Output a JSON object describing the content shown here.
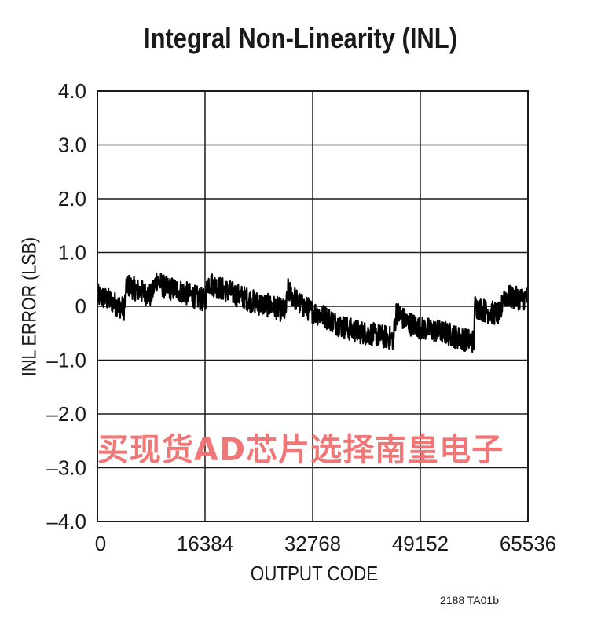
{
  "chart_data": {
    "type": "line",
    "title": "Integral Non-Linearity (INL)",
    "xlabel": "OUTPUT CODE",
    "ylabel": "INL ERROR (LSB)",
    "xlim": [
      0,
      65536
    ],
    "ylim": [
      -4.0,
      4.0
    ],
    "x_ticks": [
      0,
      16384,
      32768,
      49152,
      65536
    ],
    "x_tick_labels": [
      "0",
      "16384",
      "32768",
      "49152",
      "65536"
    ],
    "y_ticks": [
      4.0,
      3.0,
      2.0,
      1.0,
      0,
      -1.0,
      -2.0,
      -3.0,
      -4.0
    ],
    "y_tick_labels": [
      "4.0",
      "3.0",
      "2.0",
      "1.0",
      "0",
      "–1.0",
      "–2.0",
      "–3.0",
      "–4.0"
    ],
    "grid": true,
    "series": [
      {
        "color": "#000000",
        "x": [
          0,
          2048,
          4096,
          4500,
          6144,
          8192,
          9000,
          10240,
          12288,
          14336,
          16384,
          16800,
          18432,
          20480,
          22528,
          24576,
          26624,
          28672,
          29000,
          30720,
          32768,
          34816,
          36864,
          38912,
          40960,
          43008,
          45056,
          45500,
          47104,
          49152,
          51200,
          53248,
          55296,
          57344,
          57400,
          59392,
          61440,
          61700,
          63488,
          65536
        ],
        "y": [
          0.2,
          0.1,
          -0.05,
          0.4,
          0.3,
          0.2,
          0.5,
          0.35,
          0.3,
          0.2,
          0.1,
          0.45,
          0.35,
          0.25,
          0.15,
          0.05,
          0.0,
          -0.1,
          0.3,
          0.05,
          -0.1,
          -0.2,
          -0.35,
          -0.45,
          -0.5,
          -0.55,
          -0.6,
          -0.1,
          -0.3,
          -0.4,
          -0.45,
          -0.5,
          -0.6,
          -0.65,
          0.0,
          -0.1,
          -0.15,
          0.2,
          0.15,
          0.15
        ],
        "noise_amplitude": 0.22
      }
    ]
  },
  "footnote": "2188 TA01b",
  "watermark": "买现货AD芯片选择南皇电子"
}
